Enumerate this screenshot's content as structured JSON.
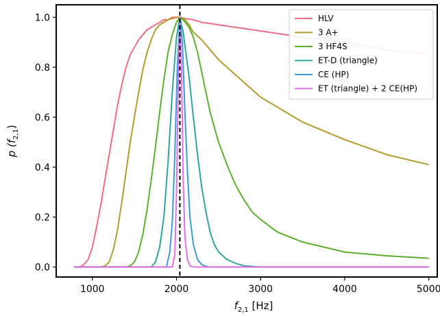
{
  "chart_data": {
    "type": "line",
    "xlabel_main": "f",
    "xlabel_sub": "2,1",
    "xlabel_unit": " [Hz]",
    "ylabel_main": "p (f",
    "ylabel_sub": "2,1",
    "ylabel_close": ")",
    "xlim": [
      570,
      5100
    ],
    "ylim": [
      -0.04,
      1.05
    ],
    "xticks": [
      1000,
      2000,
      3000,
      4000,
      5000
    ],
    "xtick_labels": [
      "1000",
      "2000",
      "3000",
      "4000",
      "5000"
    ],
    "yticks": [
      0.0,
      0.2,
      0.4,
      0.6,
      0.8,
      1.0
    ],
    "ytick_labels": [
      "0.0",
      "0.2",
      "0.4",
      "0.6",
      "0.8",
      "1.0"
    ],
    "vline_x": 2040,
    "vline_color": "#000000",
    "legend_position": "top-right",
    "series": [
      {
        "name": "HLV",
        "color": "#ee6d82",
        "x": [
          780,
          850,
          900,
          950,
          1000,
          1050,
          1100,
          1150,
          1200,
          1250,
          1300,
          1350,
          1400,
          1450,
          1500,
          1550,
          1600,
          1650,
          1700,
          1750,
          1800,
          1850,
          1900,
          1950,
          2000,
          2050,
          2100,
          2200,
          2300,
          2400,
          2500,
          2700,
          3000,
          3500,
          4000,
          4500,
          5000
        ],
        "y": [
          0.0,
          0.0,
          0.01,
          0.03,
          0.08,
          0.16,
          0.25,
          0.35,
          0.45,
          0.55,
          0.65,
          0.73,
          0.8,
          0.85,
          0.88,
          0.91,
          0.93,
          0.95,
          0.96,
          0.97,
          0.98,
          0.99,
          0.99,
          1.0,
          1.0,
          1.0,
          0.995,
          0.99,
          0.98,
          0.975,
          0.97,
          0.96,
          0.945,
          0.92,
          0.9,
          0.87,
          0.85
        ]
      },
      {
        "name": "3 A+",
        "color": "#b59a2c",
        "x": [
          780,
          1100,
          1150,
          1200,
          1250,
          1300,
          1350,
          1400,
          1450,
          1500,
          1550,
          1600,
          1650,
          1700,
          1750,
          1800,
          1850,
          1900,
          1950,
          2000,
          2050,
          2100,
          2150,
          2200,
          2300,
          2400,
          2500,
          2700,
          3000,
          3500,
          4000,
          4500,
          5000
        ],
        "y": [
          0.0,
          0.0,
          0.005,
          0.02,
          0.07,
          0.15,
          0.26,
          0.38,
          0.5,
          0.6,
          0.7,
          0.79,
          0.86,
          0.91,
          0.95,
          0.97,
          0.98,
          0.99,
          0.995,
          1.0,
          1.0,
          0.99,
          0.97,
          0.94,
          0.91,
          0.87,
          0.83,
          0.77,
          0.68,
          0.58,
          0.51,
          0.45,
          0.41
        ]
      },
      {
        "name": "3 HF4S",
        "color": "#5ab02c",
        "x": [
          780,
          1400,
          1450,
          1500,
          1550,
          1600,
          1650,
          1700,
          1750,
          1800,
          1850,
          1900,
          1950,
          2000,
          2040,
          2080,
          2150,
          2200,
          2250,
          2300,
          2350,
          2400,
          2500,
          2600,
          2700,
          2800,
          2900,
          3000,
          3200,
          3500,
          4000,
          4500,
          5000
        ],
        "y": [
          0.0,
          0.0,
          0.005,
          0.02,
          0.06,
          0.13,
          0.23,
          0.35,
          0.48,
          0.62,
          0.75,
          0.86,
          0.93,
          0.98,
          1.0,
          0.99,
          0.96,
          0.92,
          0.86,
          0.78,
          0.7,
          0.62,
          0.5,
          0.41,
          0.33,
          0.27,
          0.22,
          0.19,
          0.14,
          0.1,
          0.06,
          0.045,
          0.035
        ]
      },
      {
        "name": "ET-D (triangle)",
        "color": "#2ea59b",
        "x": [
          780,
          1700,
          1750,
          1800,
          1850,
          1900,
          1950,
          2000,
          2040,
          2080,
          2150,
          2200,
          2250,
          2300,
          2350,
          2400,
          2450,
          2500,
          2600,
          2700,
          2800,
          3000,
          5000
        ],
        "y": [
          0.0,
          0.0,
          0.02,
          0.08,
          0.2,
          0.42,
          0.7,
          0.92,
          1.0,
          0.94,
          0.76,
          0.6,
          0.45,
          0.32,
          0.22,
          0.14,
          0.09,
          0.06,
          0.03,
          0.015,
          0.005,
          0.0,
          0.0
        ]
      },
      {
        "name": "CE (HP)",
        "color": "#3b9ad8",
        "x": [
          780,
          1880,
          1920,
          1950,
          1980,
          2010,
          2040,
          2070,
          2100,
          2130,
          2160,
          2200,
          2250,
          2300,
          2350,
          2400,
          5000
        ],
        "y": [
          0.0,
          0.0,
          0.06,
          0.18,
          0.45,
          0.8,
          1.0,
          0.9,
          0.62,
          0.38,
          0.2,
          0.09,
          0.03,
          0.01,
          0.003,
          0.0,
          0.0
        ]
      },
      {
        "name": "ET (triangle) + 2 CE(HP)",
        "color": "#e36ee6",
        "x": [
          780,
          1950,
          1980,
          2000,
          2020,
          2040,
          2060,
          2080,
          2100,
          2130,
          2160,
          2200,
          5000
        ],
        "y": [
          0.0,
          0.0,
          0.05,
          0.3,
          0.72,
          1.0,
          0.78,
          0.35,
          0.12,
          0.03,
          0.005,
          0.0,
          0.0
        ]
      }
    ]
  }
}
